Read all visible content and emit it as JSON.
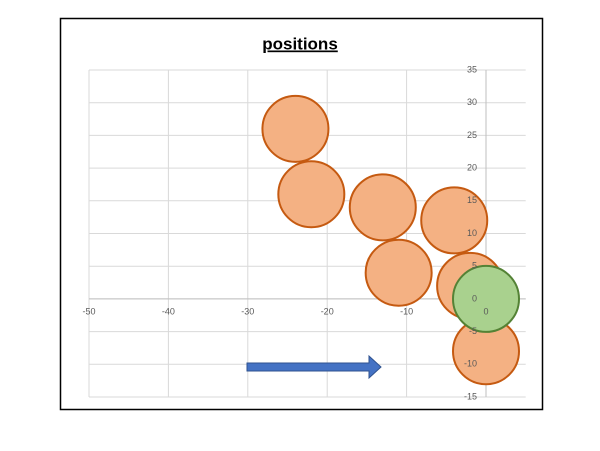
{
  "chart_data": {
    "type": "bubble",
    "title": "positions",
    "series": [
      {
        "color": "#f4b183",
        "edge": "#c55a11",
        "x": [
          -24,
          -22,
          -13,
          -4,
          -11,
          -2,
          0
        ],
        "values": [
          26,
          16,
          14,
          12,
          4,
          2,
          -8
        ],
        "sizes": [
          1,
          1,
          1,
          1,
          1,
          1,
          1
        ]
      },
      {
        "color": "#a9d18e",
        "edge": "#548235",
        "x": [
          0
        ],
        "values": [
          0
        ],
        "sizes": [
          1
        ]
      }
    ],
    "xlim": [
      -50,
      5
    ],
    "xticks": [
      -50,
      -40,
      -30,
      -20,
      -10,
      0
    ],
    "ylim": [
      -15,
      35
    ],
    "yticks": [
      -15,
      -10,
      -5,
      0,
      5,
      10,
      15,
      20,
      25,
      30,
      35
    ],
    "grid": true
  }
}
